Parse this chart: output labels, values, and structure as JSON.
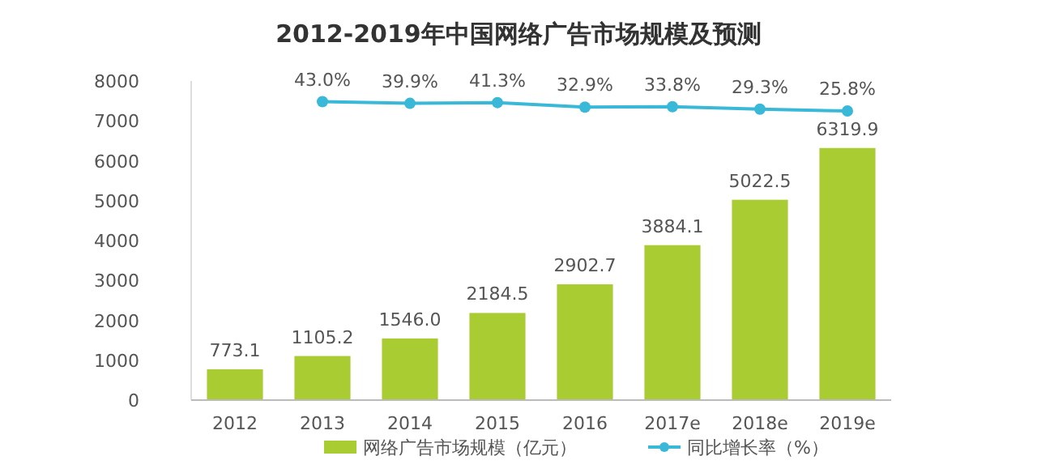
{
  "chart_data": {
    "type": "bar",
    "title": "2012-2019年中国网络广告市场规模及预测",
    "categories": [
      "2012",
      "2013",
      "2014",
      "2015",
      "2016",
      "2017e",
      "2018e",
      "2019e"
    ],
    "series": [
      {
        "name": "网络广告市场规模（亿元）",
        "color": "#a8cc32",
        "values": [
          773.1,
          1105.2,
          1546.0,
          2184.5,
          2902.7,
          3884.1,
          5022.5,
          6319.9
        ],
        "value_labels": [
          "773.1",
          "1105.2",
          "1546.0",
          "2184.5",
          "2902.7",
          "3884.1",
          "5022.5",
          "6319.9"
        ]
      },
      {
        "name": "同比增长率（%）",
        "type": "line",
        "axis": "y2",
        "color": "#3ab8d8",
        "marker": "circle",
        "values": [
          null,
          43.0,
          39.9,
          41.3,
          32.9,
          33.8,
          29.3,
          25.8
        ],
        "value_labels": [
          null,
          "43.0%",
          "39.9%",
          "41.3%",
          "32.9%",
          "33.8%",
          "29.3%",
          "25.8%"
        ]
      }
    ],
    "ylim": [
      0,
      8000
    ],
    "yticks": [
      0,
      1000,
      2000,
      3000,
      4000,
      5000,
      6000,
      7000,
      8000
    ],
    "y2lim": [
      -506,
      81
    ],
    "tick_labels": "xy",
    "grid": false,
    "legend": "bottom"
  }
}
